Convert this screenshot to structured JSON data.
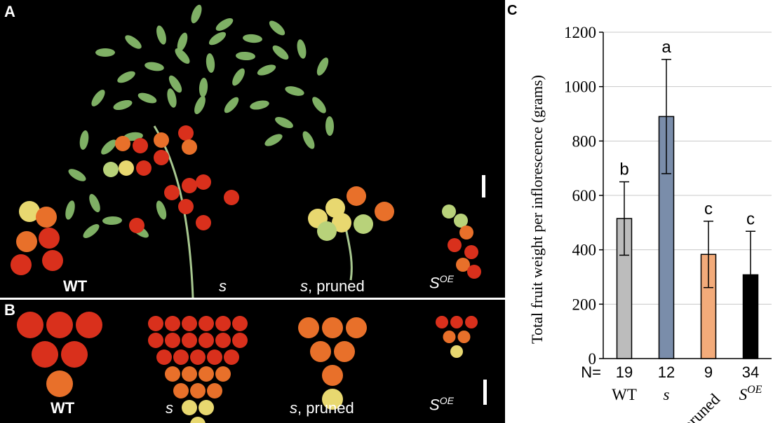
{
  "panels": {
    "a": "A",
    "b": "B",
    "c": "C"
  },
  "photo_labels": {
    "wt": "WT",
    "s": "s",
    "s_pruned_s": "s",
    "s_pruned_rest": ", pruned",
    "soe_base": "S",
    "soe_sup": "OE"
  },
  "colors": {
    "leaf": "#7fb065",
    "stem": "#a8c890",
    "tomato_red": "#d9301c",
    "tomato_orange": "#e8702a",
    "tomato_yellow": "#e8d870",
    "tomato_green": "#b8d27a"
  },
  "chart_data": {
    "type": "bar",
    "ylabel": "Total fruit weight per inflorescence (grams)",
    "ylim": [
      0,
      1200
    ],
    "yticks": [
      "0",
      "200",
      "400",
      "600",
      "800",
      "1000",
      "1200"
    ],
    "n_prefix": "N=",
    "categories": [
      {
        "label": "WT",
        "italic": false,
        "sup": "",
        "n": "19",
        "value": 515,
        "err": 135,
        "letter": "b",
        "color": "#bcbcbc"
      },
      {
        "label": "s",
        "italic": true,
        "sup": "",
        "n": "12",
        "value": 890,
        "err": 210,
        "letter": "a",
        "color": "#7a8daa"
      },
      {
        "label": "pruned",
        "italic": false,
        "sup": "",
        "n": "9",
        "value": 383,
        "err": 122,
        "letter": "c",
        "color": "#f3ab7a"
      },
      {
        "label": "S",
        "italic": true,
        "sup": "OE",
        "n": "34",
        "value": 308,
        "err": 160,
        "letter": "c",
        "color": "#000000"
      }
    ]
  }
}
